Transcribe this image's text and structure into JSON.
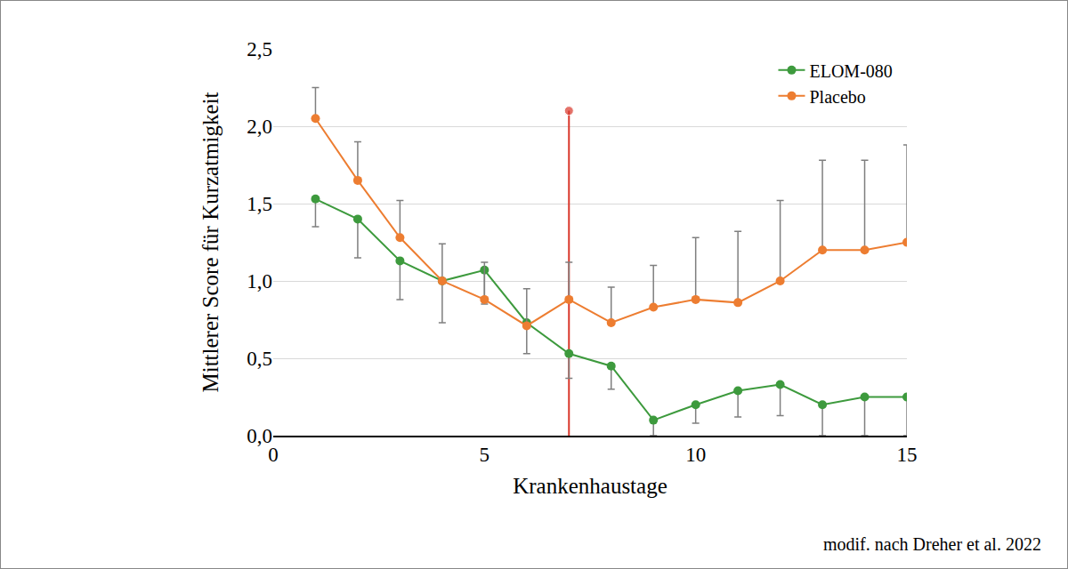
{
  "chart_data": {
    "type": "line",
    "xlabel": "Krankenhaustage",
    "ylabel": "Mittlerer Score für Kurzatmigkeit",
    "x": [
      1,
      2,
      3,
      4,
      5,
      6,
      7,
      8,
      9,
      10,
      11,
      12,
      13,
      14,
      15
    ],
    "series": [
      {
        "name": "ELOM-080",
        "color": "#3d9a3d",
        "marker": "circle",
        "values": [
          1.53,
          1.4,
          1.13,
          1.0,
          1.07,
          0.73,
          0.53,
          0.45,
          0.1,
          0.2,
          0.29,
          0.33,
          0.2,
          0.25,
          0.25
        ],
        "error_minus": [
          0.18,
          0.25,
          0.25,
          0.27,
          0.22,
          0.2,
          0.16,
          0.15,
          0.1,
          0.12,
          0.17,
          0.2,
          0.2,
          0.25,
          0.25
        ]
      },
      {
        "name": "Placebo",
        "color": "#ed7d31",
        "marker": "circle",
        "values": [
          2.05,
          1.65,
          1.28,
          1.0,
          0.88,
          0.71,
          0.88,
          0.73,
          0.83,
          0.88,
          0.86,
          1.0,
          1.2,
          1.2,
          1.25
        ],
        "error_plus": [
          0.2,
          0.25,
          0.24,
          0.24,
          0.24,
          0.24,
          0.24,
          0.23,
          0.27,
          0.4,
          0.46,
          0.52,
          0.58,
          0.58,
          0.63
        ]
      }
    ],
    "reference_line": {
      "x": 7,
      "ymax": 2.1,
      "color": "#d9372b"
    },
    "xlim": [
      0,
      15
    ],
    "xticks": [
      0,
      5,
      10,
      15
    ],
    "ylim": [
      0,
      2.5
    ],
    "yticks": [
      {
        "value": 0,
        "label": "0,0"
      },
      {
        "value": 0.5,
        "label": "0,5"
      },
      {
        "value": 1,
        "label": "1,0"
      },
      {
        "value": 1.5,
        "label": "1,5"
      },
      {
        "value": 2,
        "label": "2,0"
      },
      {
        "value": 2.5,
        "label": "2,5"
      }
    ],
    "grid": true,
    "legend": "upper right",
    "annotations": [
      {
        "text": "modif. nach Dreher et al. 2022"
      }
    ]
  }
}
